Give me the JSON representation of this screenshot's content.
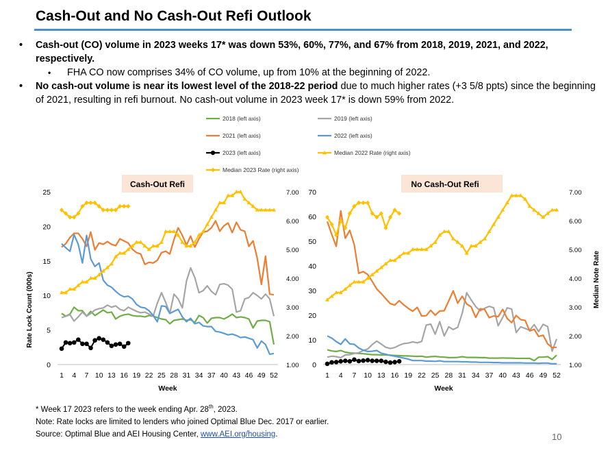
{
  "page": {
    "title": "Cash-Out and No Cash-Out Refi Outlook",
    "page_number": "10"
  },
  "bullets": {
    "b1_bold": "Cash-out (CO) volume in 2023 weeks 17* was down 53%, 60%, 77%, and 67% from 2018, 2019, 2021, and 2022, respectively.",
    "b1_sub": "FHA CO now comprises 34% of CO volume, up from 10% at the beginning of 2022.",
    "b2_bold": "No cash-out volume is near its lowest level of the 2018-22 period",
    "b2_rest": " due to much higher rates (+3 5/8 ppts) since the beginning of 2021, resulting in refi burnout. No cash-out volume in 2023 week 17* is down 59% from 2022.",
    "bullet_glyph": "•"
  },
  "footnotes": {
    "f1_pre": "* Week 17 2023 refers to the week ending Apr. 28",
    "f1_sup": "th",
    "f1_post": ", 2023.",
    "f2": "Note: Rate locks are limited to lenders who joined Optimal Blue Dec. 2017 or earlier.",
    "f3_pre": "Source: Optimal Blue and AEI Housing Center, ",
    "f3_link": "www.AEI.org/housing",
    "f3_post": "."
  },
  "legend": [
    {
      "name": "2018 (left axis)",
      "color": "#70ad47",
      "marker": "none"
    },
    {
      "name": "2019 (left axis)",
      "color": "#a5a5a5",
      "marker": "none"
    },
    {
      "name": "2021 (left axis)",
      "color": "#ed7d31",
      "marker": "none"
    },
    {
      "name": "2022 (left axis)",
      "color": "#5b9bd5",
      "marker": "none"
    },
    {
      "name": "2023 (left axis)",
      "color": "#000000",
      "marker": "circle"
    },
    {
      "name": "Median 2022 Rate (right axis)",
      "color": "#ffc000",
      "marker": "triangle"
    },
    {
      "name": "Median 2023 Rate (right axis)",
      "color": "#ffc000",
      "marker": "diamond"
    }
  ],
  "shared_axis_labels": {
    "ylabel_left": "Rate Lock Count (000s)",
    "ylabel_right": "Median Note Rate",
    "xlabel": "Week"
  },
  "chart_data": [
    {
      "type": "line",
      "title": "Cash-Out Refi",
      "xlabel": "Week",
      "x_ticks": [
        1,
        4,
        7,
        10,
        13,
        16,
        19,
        22,
        25,
        28,
        31,
        34,
        37,
        40,
        43,
        46,
        49,
        52
      ],
      "ylim": [
        0,
        25
      ],
      "y_ticks": [
        0,
        5,
        10,
        15,
        20,
        25
      ],
      "y2lim": [
        1.0,
        7.0
      ],
      "y2_ticks": [
        "1.00",
        "2.00",
        "3.00",
        "4.00",
        "5.00",
        "6.00",
        "7.00"
      ],
      "series": [
        {
          "name": "2018 (left axis)",
          "axis": "left",
          "color": "#70ad47",
          "values": [
            7.4,
            7.0,
            7.3,
            8.3,
            7.8,
            7.8,
            7.0,
            7.7,
            7.1,
            7.5,
            7.9,
            7.5,
            7.6,
            6.6,
            7.0,
            7.2,
            7.3,
            7.1,
            7.0,
            7.0,
            6.9,
            7.1,
            7.0,
            6.8,
            6.6,
            6.5,
            5.9,
            6.4,
            6.5,
            6.6,
            6.4,
            6.5,
            6.1,
            7.1,
            6.8,
            6.0,
            6.7,
            6.8,
            6.8,
            6.6,
            6.9,
            7.3,
            6.8,
            6.9,
            6.8,
            6.6,
            5.3,
            6.3,
            6.4,
            6.4,
            6.2,
            2.9
          ]
        },
        {
          "name": "2019 (left axis)",
          "axis": "left",
          "color": "#a5a5a5",
          "values": [
            6.8,
            7.0,
            7.2,
            6.3,
            6.9,
            7.6,
            7.0,
            7.4,
            7.9,
            8.1,
            8.2,
            8.6,
            8.3,
            8.5,
            8.0,
            7.8,
            8.3,
            8.0,
            7.7,
            7.5,
            7.6,
            7.3,
            7.0,
            8.9,
            10.4,
            9.0,
            7.4,
            10.2,
            9.5,
            8.2,
            12.1,
            14.0,
            12.6,
            10.4,
            10.7,
            11.4,
            10.6,
            10.1,
            11.6,
            11.7,
            11.5,
            10.9,
            7.6,
            7.8,
            9.5,
            9.7,
            10.4,
            10.0,
            9.5,
            10.2,
            9.5,
            7.0
          ]
        },
        {
          "name": "2021 (left axis)",
          "axis": "left",
          "color": "#ed7d31",
          "values": [
            17.0,
            17.5,
            18.4,
            19.0,
            19.0,
            18.2,
            17.1,
            19.2,
            16.6,
            17.6,
            17.4,
            17.8,
            17.4,
            17.2,
            18.2,
            17.9,
            17.6,
            16.7,
            16.2,
            16.0,
            14.5,
            14.8,
            14.7,
            15.1,
            16.2,
            16.4,
            16.0,
            18.1,
            19.8,
            18.7,
            17.3,
            18.6,
            17.0,
            18.2,
            19.2,
            19.3,
            19.8,
            20.8,
            19.3,
            20.1,
            20.5,
            19.1,
            20.6,
            19.5,
            19.3,
            17.1,
            17.9,
            15.4,
            11.6,
            15.7,
            10.2,
            10.1
          ]
        },
        {
          "name": "2022 (left axis)",
          "axis": "left",
          "color": "#5b9bd5",
          "values": [
            17.5,
            16.9,
            16.4,
            18.8,
            17.4,
            14.7,
            18.7,
            15.3,
            14.2,
            14.7,
            12.2,
            11.5,
            11.2,
            10.6,
            10.1,
            9.8,
            9.9,
            9.5,
            8.7,
            8.3,
            8.2,
            7.8,
            7.1,
            6.2,
            8.5,
            8.4,
            7.4,
            7.7,
            8.0,
            6.9,
            6.2,
            6.7,
            5.9,
            6.1,
            5.6,
            5.5,
            5.5,
            4.8,
            4.7,
            4.5,
            4.3,
            4.4,
            4.2,
            3.9,
            4.0,
            3.8,
            3.6,
            2.4,
            3.4,
            2.9,
            1.5,
            1.6
          ]
        },
        {
          "name": "2023 (left axis)",
          "axis": "left",
          "color": "#000000",
          "marker": "circle",
          "values": [
            2.3,
            3.2,
            3.1,
            3.2,
            3.6,
            3.0,
            3.0,
            2.4,
            3.5,
            3.8,
            3.6,
            3.2,
            2.7,
            2.9,
            3.0,
            2.6,
            3.1
          ]
        },
        {
          "name": "Median 2022 Rate (right axis)",
          "axis": "right",
          "color": "#ffc000",
          "marker": "triangle",
          "values": [
            3.5,
            3.5,
            3.62,
            3.62,
            3.75,
            3.87,
            3.87,
            4.0,
            4.0,
            4.12,
            4.25,
            4.37,
            4.5,
            4.75,
            4.87,
            4.87,
            5.0,
            5.12,
            5.25,
            5.25,
            5.12,
            5.0,
            5.12,
            5.12,
            5.25,
            5.62,
            5.62,
            5.62,
            5.5,
            5.25,
            5.12,
            5.12,
            5.25,
            5.5,
            5.62,
            5.87,
            6.12,
            6.37,
            6.62,
            6.62,
            6.87,
            6.87,
            7.0,
            7.0,
            6.75,
            6.62,
            6.5,
            6.37,
            6.37,
            6.37,
            6.37,
            6.37
          ]
        },
        {
          "name": "Median 2023 Rate (right axis)",
          "axis": "right",
          "color": "#ffc000",
          "marker": "diamond",
          "values": [
            6.37,
            6.25,
            6.12,
            6.12,
            6.25,
            6.5,
            6.62,
            6.62,
            6.62,
            6.5,
            6.37,
            6.37,
            6.37,
            6.37,
            6.5,
            6.5,
            6.5
          ]
        }
      ]
    },
    {
      "type": "line",
      "title": "No Cash-Out Refi",
      "xlabel": "Week",
      "x_ticks": [
        1,
        4,
        7,
        10,
        13,
        16,
        19,
        22,
        25,
        28,
        31,
        34,
        37,
        40,
        43,
        46,
        49,
        52
      ],
      "ylim": [
        0,
        70
      ],
      "y_ticks": [
        0,
        10,
        20,
        30,
        40,
        50,
        60,
        70
      ],
      "y2lim": [
        1.0,
        7.0
      ],
      "y2_ticks": [
        "1.00",
        "2.00",
        "3.00",
        "4.00",
        "5.00",
        "6.00",
        "7.00"
      ],
      "series": [
        {
          "name": "2018 (left axis)",
          "axis": "left",
          "color": "#70ad47",
          "values": [
            6.0,
            5.5,
            5.3,
            5.7,
            5.0,
            4.7,
            4.6,
            4.5,
            4.4,
            4.2,
            4.0,
            4.0,
            3.9,
            3.9,
            3.8,
            3.7,
            3.6,
            3.5,
            3.5,
            3.4,
            3.3,
            3.4,
            3.0,
            3.2,
            3.3,
            3.1,
            3.0,
            2.8,
            2.8,
            2.9,
            3.2,
            2.9,
            2.9,
            2.9,
            2.8,
            2.8,
            2.6,
            2.6,
            2.6,
            2.7,
            2.6,
            2.6,
            2.5,
            2.5,
            2.5,
            2.5,
            1.6,
            3.0,
            3.0,
            3.2,
            2.1,
            3.8
          ]
        },
        {
          "name": "2019 (left axis)",
          "axis": "left",
          "color": "#a5a5a5",
          "values": [
            3.0,
            3.4,
            3.2,
            2.8,
            3.9,
            4.0,
            4.5,
            4.8,
            5.7,
            6.3,
            8.1,
            9.5,
            8.3,
            7.0,
            6.5,
            6.9,
            7.8,
            8.5,
            8.7,
            9.2,
            8.8,
            9.4,
            16.0,
            16.4,
            12.3,
            17.4,
            11.6,
            15.3,
            14.2,
            15.1,
            20.8,
            29.1,
            26.2,
            23.5,
            21.8,
            22.8,
            23.6,
            23.0,
            15.7,
            19.1,
            23.0,
            22.5,
            13.0,
            15.3,
            14.6,
            13.9,
            16.2,
            13.4,
            16.3,
            15.4,
            5.4,
            10.4
          ]
        },
        {
          "name": "2021 (left axis)",
          "axis": "left",
          "color": "#ed7d31",
          "values": [
            58.0,
            52.7,
            47.9,
            62.3,
            51.2,
            54.4,
            48.6,
            37.0,
            37.7,
            36.5,
            33.7,
            30.6,
            28.8,
            26.7,
            24.7,
            24.1,
            25.9,
            24.2,
            22.8,
            21.6,
            23.2,
            19.7,
            19.8,
            22.0,
            20.0,
            21.7,
            21.8,
            25.8,
            29.9,
            24.9,
            27.7,
            24.6,
            23.4,
            19.1,
            22.6,
            22.3,
            19.0,
            19.7,
            19.4,
            22.4,
            18.7,
            17.0,
            19.9,
            18.2,
            17.9,
            13.6,
            14.3,
            11.4,
            11.9,
            8.4,
            6.9,
            7.0
          ]
        },
        {
          "name": "2022 (left axis)",
          "axis": "left",
          "color": "#5b9bd5",
          "values": [
            11.6,
            10.7,
            9.3,
            8.2,
            10.4,
            8.4,
            8.2,
            6.7,
            5.8,
            5.3,
            5.4,
            5.7,
            4.6,
            4.2,
            3.7,
            3.4,
            3.0,
            2.6,
            2.2,
            1.6,
            1.6,
            1.6,
            1.4,
            1.4,
            1.3,
            1.5,
            1.2,
            1.2,
            1.2,
            1.2,
            1.1,
            1.1,
            1.0,
            1.0,
            0.9,
            0.9,
            0.9,
            0.8,
            0.8,
            0.7,
            0.7,
            0.7,
            0.7,
            0.7,
            0.6,
            0.6,
            0.6,
            0.5,
            0.6,
            0.6,
            0.3,
            0.3
          ]
        },
        {
          "name": "2023 (left axis)",
          "axis": "left",
          "color": "#000000",
          "marker": "circle",
          "values": [
            0.3,
            0.9,
            1.0,
            1.3,
            1.5,
            1.3,
            2.0,
            1.4,
            1.6,
            1.8,
            1.5,
            1.5,
            1.5,
            1.1,
            0.8,
            1.0,
            1.3
          ]
        },
        {
          "name": "Median 2022 Rate (right axis)",
          "axis": "right",
          "color": "#ffc000",
          "marker": "triangle",
          "values": [
            3.25,
            3.37,
            3.5,
            3.5,
            3.62,
            3.75,
            3.87,
            3.87,
            3.87,
            4.0,
            4.12,
            4.25,
            4.37,
            4.5,
            4.62,
            4.62,
            4.75,
            4.87,
            4.87,
            5.0,
            5.0,
            5.0,
            5.0,
            5.12,
            5.25,
            5.5,
            5.62,
            5.62,
            5.37,
            5.25,
            5.12,
            4.87,
            5.12,
            5.12,
            5.25,
            5.37,
            5.62,
            5.87,
            6.12,
            6.37,
            6.62,
            6.87,
            6.87,
            6.87,
            6.75,
            6.5,
            6.37,
            6.25,
            6.12,
            6.25,
            6.37,
            6.37
          ]
        },
        {
          "name": "Median 2023 Rate (right axis)",
          "axis": "right",
          "color": "#ffc000",
          "marker": "diamond",
          "values": [
            6.12,
            5.87,
            5.5,
            6.0,
            5.75,
            6.25,
            6.5,
            6.62,
            6.62,
            6.62,
            6.25,
            6.12,
            6.25,
            5.75,
            6.12,
            6.37,
            6.25
          ]
        }
      ]
    }
  ]
}
